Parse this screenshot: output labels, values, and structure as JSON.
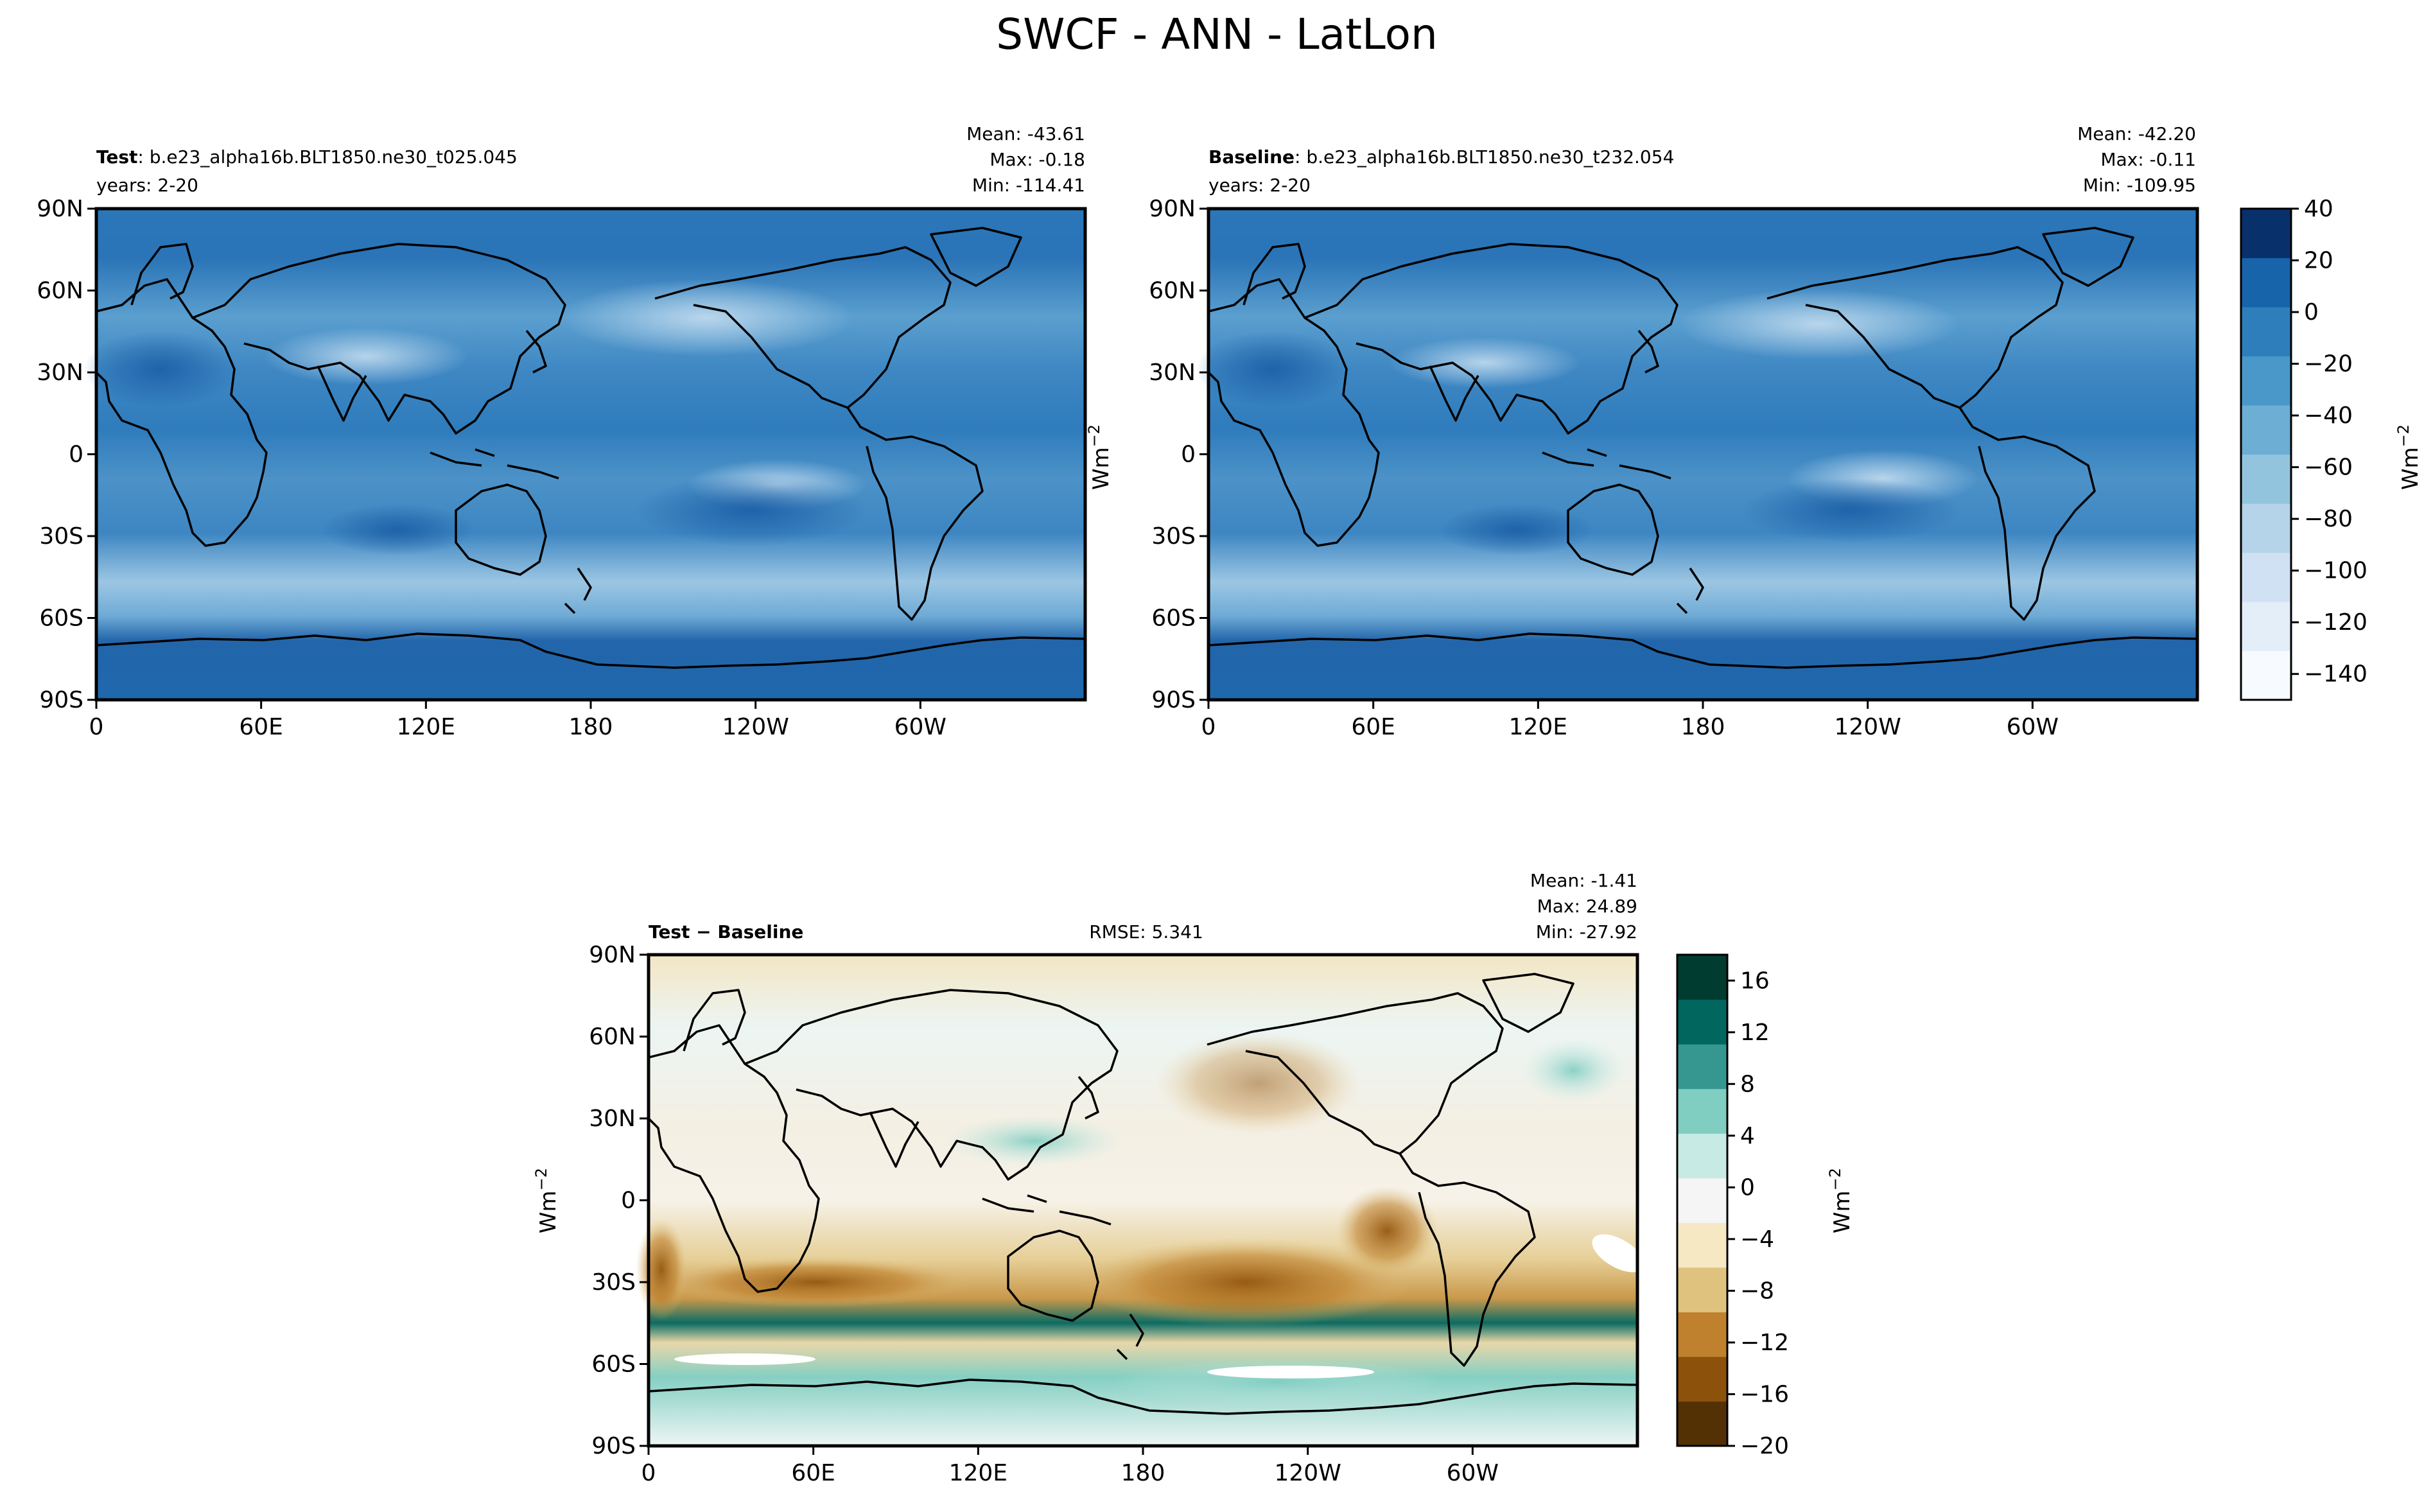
{
  "title": "SWCF - ANN - LatLon",
  "lat_ticks": [
    "90N",
    "60N",
    "30N",
    "0",
    "30S",
    "60S",
    "90S"
  ],
  "lon_ticks": [
    "0",
    "60E",
    "120E",
    "180",
    "120W",
    "60W"
  ],
  "panels": [
    {
      "id": "test",
      "label_bold": "Test",
      "label_rest": ": b.e23_alpha16b.BLT1850.ne30_t025.045",
      "years": "years: 2-20",
      "stats": [
        "Mean: -43.61",
        "Max: -0.18",
        "Min: -114.41"
      ]
    },
    {
      "id": "baseline",
      "label_bold": "Baseline",
      "label_rest": ": b.e23_alpha16b.BLT1850.ne30_t232.054",
      "years": "years: 2-20",
      "stats": [
        "Mean: -42.20",
        "Max: -0.11",
        "Min: -109.95"
      ]
    },
    {
      "id": "diff",
      "label_bold": "Test − Baseline",
      "label_rest": "",
      "rmse": "RMSE: 5.341",
      "stats": [
        "Mean: -1.41",
        "Max: 24.89",
        "Min: -27.92"
      ]
    }
  ],
  "units_label": "Wm",
  "units_exp": "−2",
  "colorbars": {
    "main": {
      "ticks": [
        "40",
        "20",
        "0",
        "−20",
        "−40",
        "−60",
        "−80",
        "−100",
        "−120",
        "−140"
      ],
      "tick_values": [
        40,
        20,
        0,
        -20,
        -40,
        -60,
        -80,
        -100,
        -120,
        -140
      ],
      "range": [
        -150,
        40
      ],
      "colors": [
        "#f7fbff",
        "#e3eef9",
        "#cfe1f2",
        "#b5d4e9",
        "#93c4de",
        "#6daed5",
        "#4a98c9",
        "#2e7ebc",
        "#1764ab",
        "#08306b"
      ]
    },
    "diff": {
      "ticks": [
        "16",
        "12",
        "8",
        "4",
        "0",
        "−4",
        "−8",
        "−12",
        "−16",
        "−20"
      ],
      "tick_values": [
        16,
        12,
        8,
        4,
        0,
        -4,
        -8,
        -12,
        -16,
        -20
      ],
      "range": [
        -20,
        18
      ],
      "colors": [
        "#543005",
        "#8c510a",
        "#bf812d",
        "#dfc27d",
        "#f6e8c3",
        "#f5f5f5",
        "#c7eae5",
        "#80cdc1",
        "#35978f",
        "#01665e",
        "#003c30"
      ]
    }
  },
  "chart_data": [
    {
      "type": "heatmap",
      "title": "Test",
      "xlabel": "",
      "ylabel": "",
      "x_ticks": [
        "0",
        "60E",
        "120E",
        "180",
        "120W",
        "60W"
      ],
      "y_ticks": [
        "90N",
        "60N",
        "30N",
        "0",
        "30S",
        "60S",
        "90S"
      ],
      "zlim": [
        -150,
        40
      ],
      "stats": {
        "mean": -43.61,
        "max": -0.18,
        "min": -114.41
      }
    },
    {
      "type": "heatmap",
      "title": "Baseline",
      "xlabel": "",
      "ylabel": "",
      "x_ticks": [
        "0",
        "60E",
        "120E",
        "180",
        "120W",
        "60W"
      ],
      "y_ticks": [
        "90N",
        "60N",
        "30N",
        "0",
        "30S",
        "60S",
        "90S"
      ],
      "zlim": [
        -150,
        40
      ],
      "stats": {
        "mean": -42.2,
        "max": -0.11,
        "min": -109.95
      }
    },
    {
      "type": "heatmap",
      "title": "Test − Baseline",
      "xlabel": "",
      "ylabel": "",
      "x_ticks": [
        "0",
        "60E",
        "120E",
        "180",
        "120W",
        "60W"
      ],
      "y_ticks": [
        "90N",
        "60N",
        "30N",
        "0",
        "30S",
        "60S",
        "90S"
      ],
      "zlim": [
        -20,
        18
      ],
      "stats": {
        "mean": -1.41,
        "max": 24.89,
        "min": -27.92,
        "rmse": 5.341
      }
    }
  ]
}
